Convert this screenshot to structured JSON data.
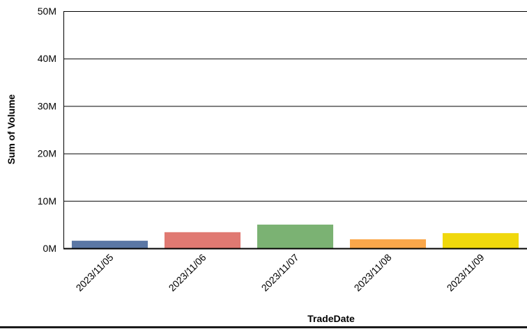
{
  "chart_data": {
    "type": "bar",
    "title": "",
    "xlabel": "TradeDate",
    "ylabel": "Sum of Volume",
    "categories": [
      "2023/11/05",
      "2023/11/06",
      "2023/11/07",
      "2023/11/08",
      "2023/11/09"
    ],
    "values": [
      1600000,
      3400000,
      5000000,
      1900000,
      3200000
    ],
    "colors": [
      "#5b77a5",
      "#e07972",
      "#7bb273",
      "#fba74a",
      "#f0d80c"
    ],
    "ylim": [
      0,
      50000000
    ],
    "yticks": [
      0,
      10000000,
      20000000,
      30000000,
      40000000,
      50000000
    ],
    "ytick_labels": [
      "0M",
      "10M",
      "20M",
      "30M",
      "40M",
      "50M"
    ],
    "grid": true,
    "legend": "none"
  }
}
